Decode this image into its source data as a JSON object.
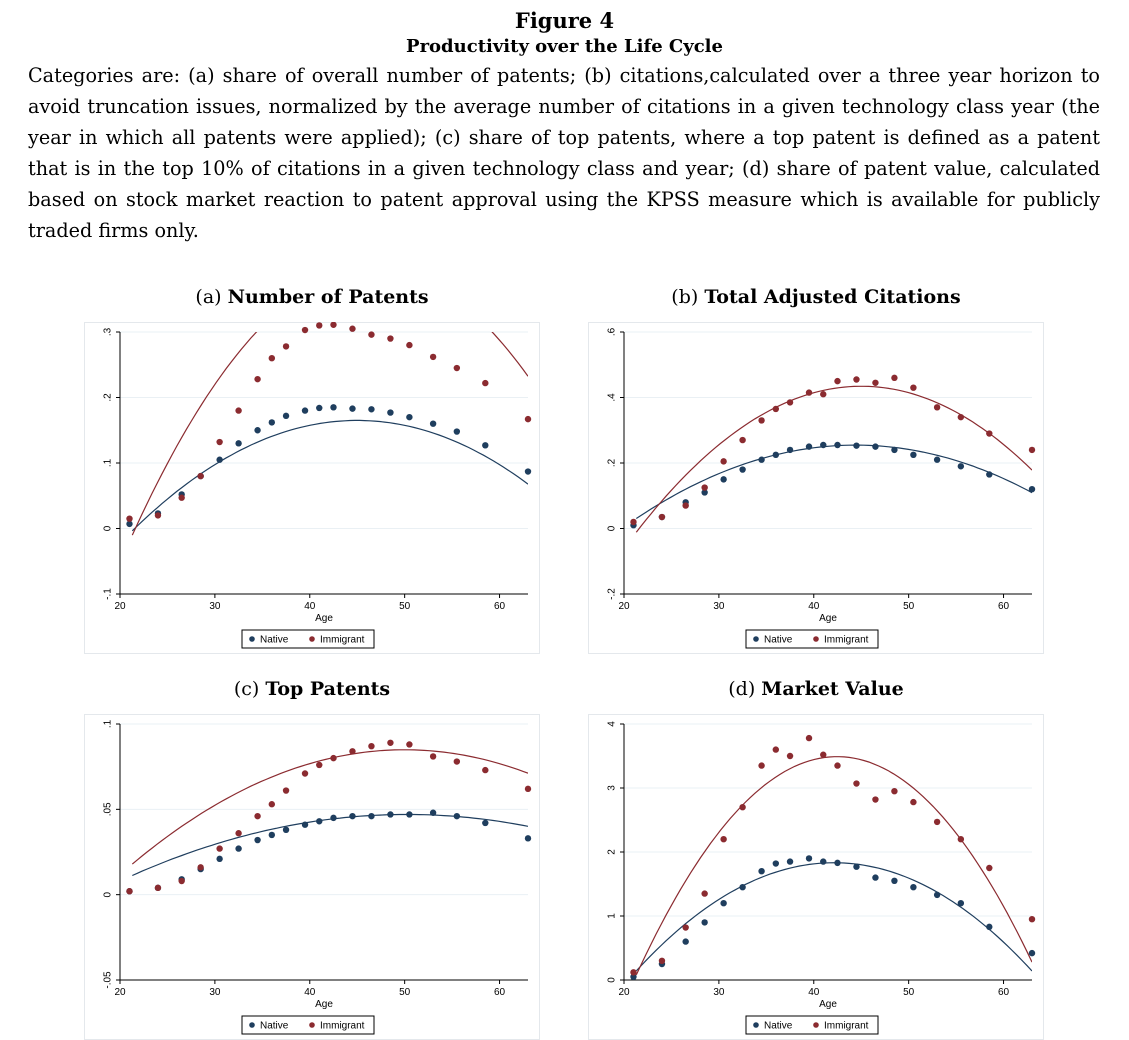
{
  "figure": {
    "label": "Figure 4",
    "title": "Productivity over the Life Cycle",
    "caption": "Categories are: (a) share of overall number of patents; (b) citations,calculated over a three year horizon to avoid truncation issues, normalized by the average number of citations in a given technology class year (the year in which all patents were applied); (c) share of top patents, where a top patent is defined as a patent that is in the top 10% of citations in a given technology class and year; (d) share of patent value, calculated based on stock market reaction to patent approval using the KPSS measure which is available for publicly traded firms only."
  },
  "colors": {
    "native": "#1f3e5e",
    "immigrant": "#8b2b30",
    "grid": "#eaf0f4"
  },
  "panels": [
    {
      "letter": "(a)",
      "name": "Number of Patents"
    },
    {
      "letter": "(b)",
      "name": "Total Adjusted Citations"
    },
    {
      "letter": "(c)",
      "name": "Top Patents"
    },
    {
      "letter": "(d)",
      "name": "Market Value"
    }
  ],
  "chart_data": [
    {
      "type": "scatter",
      "title": "(a) Number of Patents",
      "xlabel": "Age",
      "ylabel": "",
      "xlim": [
        20,
        63
      ],
      "ylim": [
        -0.1,
        0.3
      ],
      "xticks": [
        20,
        30,
        40,
        50,
        60
      ],
      "xtick_labels": [
        "20",
        "30",
        "40",
        "50",
        "60"
      ],
      "yticks": [
        -0.1,
        0,
        0.1,
        0.2,
        0.3
      ],
      "ytick_labels": [
        "-.1",
        "0",
        ".1",
        ".2",
        ".3"
      ],
      "grid": true,
      "legend": "bottom-center",
      "series": [
        {
          "name": "Native",
          "x": [
            21,
            24,
            26.5,
            28.5,
            30.5,
            32.5,
            34.5,
            36,
            37.5,
            39.5,
            41,
            42.5,
            44.5,
            46.5,
            48.5,
            50.5,
            53,
            55.5,
            58.5,
            63
          ],
          "y": [
            0.007,
            0.023,
            0.052,
            0.08,
            0.105,
            0.13,
            0.15,
            0.162,
            0.172,
            0.18,
            0.184,
            0.185,
            0.183,
            0.182,
            0.177,
            0.17,
            0.16,
            0.148,
            0.127,
            0.087
          ],
          "fit": [
            -0.4425,
            0.027,
            -0.0003
          ]
        },
        {
          "name": "Immigrant",
          "x": [
            21,
            24,
            26.5,
            28.5,
            30.5,
            32.5,
            34.5,
            36,
            37.5,
            39.5,
            41,
            42.5,
            44.5,
            46.5,
            48.5,
            50.5,
            53,
            55.5,
            58.5,
            63
          ],
          "y": [
            0.015,
            0.02,
            0.047,
            0.08,
            0.132,
            0.18,
            0.228,
            0.26,
            0.278,
            0.303,
            0.31,
            0.311,
            0.305,
            0.296,
            0.29,
            0.28,
            0.262,
            0.245,
            0.222,
            0.167
          ],
          "fit": [
            -0.9725,
            0.0585,
            -0.000625
          ]
        }
      ]
    },
    {
      "type": "scatter",
      "title": "(b) Total Adjusted Citations",
      "xlabel": "Age",
      "ylabel": "",
      "xlim": [
        20,
        63
      ],
      "ylim": [
        -0.2,
        0.6
      ],
      "xticks": [
        20,
        30,
        40,
        50,
        60
      ],
      "xtick_labels": [
        "20",
        "30",
        "40",
        "50",
        "60"
      ],
      "yticks": [
        -0.2,
        0,
        0.2,
        0.4,
        0.6
      ],
      "ytick_labels": [
        "-.2",
        "0",
        ".2",
        ".4",
        ".6"
      ],
      "grid": true,
      "legend": "bottom-center",
      "series": [
        {
          "name": "Native",
          "x": [
            21,
            24,
            26.5,
            28.5,
            30.5,
            32.5,
            34.5,
            36,
            37.5,
            39.5,
            41,
            42.5,
            44.5,
            46.5,
            48.5,
            50.5,
            53,
            55.5,
            58.5,
            63
          ],
          "y": [
            0.01,
            0.035,
            0.08,
            0.11,
            0.15,
            0.18,
            0.21,
            0.225,
            0.24,
            0.25,
            0.255,
            0.255,
            0.253,
            0.25,
            0.24,
            0.225,
            0.21,
            0.19,
            0.165,
            0.12
          ],
          "fit": [
            -0.5735,
            0.0373,
            -0.00042
          ]
        },
        {
          "name": "Immigrant",
          "x": [
            21,
            24,
            26.5,
            28.5,
            30.5,
            32.5,
            34.5,
            36,
            37.5,
            39.5,
            41,
            42.5,
            44.5,
            46.5,
            48.5,
            50.5,
            53,
            55.5,
            58.5,
            63
          ],
          "y": [
            0.02,
            0.035,
            0.07,
            0.125,
            0.205,
            0.27,
            0.33,
            0.365,
            0.385,
            0.415,
            0.41,
            0.45,
            0.455,
            0.445,
            0.46,
            0.43,
            0.37,
            0.34,
            0.29,
            0.24
          ],
          "fit": [
            -1.1708,
            0.07131,
            -0.000792
          ]
        }
      ]
    },
    {
      "type": "scatter",
      "title": "(c) Top Patents",
      "xlabel": "Age",
      "ylabel": "",
      "xlim": [
        20,
        63
      ],
      "ylim": [
        -0.05,
        0.1
      ],
      "xticks": [
        20,
        30,
        40,
        50,
        60
      ],
      "xtick_labels": [
        "20",
        "30",
        "40",
        "50",
        "60"
      ],
      "yticks": [
        -0.05,
        0,
        0.05,
        0.1
      ],
      "ytick_labels": [
        "-.05",
        "0",
        ".05",
        ".1"
      ],
      "grid": true,
      "legend": "bottom-center",
      "series": [
        {
          "name": "Native",
          "x": [
            21,
            24,
            26.5,
            28.5,
            30.5,
            32.5,
            34.5,
            36,
            37.5,
            39.5,
            41,
            42.5,
            44.5,
            46.5,
            48.5,
            50.5,
            53,
            55.5,
            58.5,
            63
          ],
          "y": [
            0.002,
            0.004,
            0.009,
            0.015,
            0.021,
            0.027,
            0.032,
            0.035,
            0.038,
            0.041,
            0.043,
            0.045,
            0.046,
            0.046,
            0.047,
            0.047,
            0.048,
            0.046,
            0.042,
            0.033
          ],
          "fit": [
            -0.06075,
            0.00429,
            -4.27e-05
          ]
        },
        {
          "name": "Immigrant",
          "x": [
            21,
            24,
            26.5,
            28.5,
            30.5,
            32.5,
            34.5,
            36,
            37.5,
            39.5,
            41,
            42.5,
            44.5,
            46.5,
            48.5,
            50.5,
            53,
            55.5,
            58.5,
            63
          ],
          "y": [
            0.002,
            0.004,
            0.008,
            0.016,
            0.027,
            0.036,
            0.046,
            0.053,
            0.061,
            0.071,
            0.076,
            0.08,
            0.084,
            0.087,
            0.089,
            0.088,
            0.081,
            0.078,
            0.073,
            0.062
          ],
          "fit": [
            -0.11835,
            0.00813,
            -8.13e-05
          ]
        }
      ]
    },
    {
      "type": "scatter",
      "title": "(d) Market Value",
      "xlabel": "Age",
      "ylabel": "",
      "xlim": [
        20,
        63
      ],
      "ylim": [
        0,
        4
      ],
      "xticks": [
        20,
        30,
        40,
        50,
        60
      ],
      "xtick_labels": [
        "20",
        "30",
        "40",
        "50",
        "60"
      ],
      "yticks": [
        0,
        1,
        2,
        3,
        4
      ],
      "ytick_labels": [
        "0",
        "1",
        "2",
        "3",
        "4"
      ],
      "grid": true,
      "legend": "bottom-center",
      "series": [
        {
          "name": "Native",
          "x": [
            21,
            24,
            26.5,
            28.5,
            30.5,
            32.5,
            34.5,
            36,
            37.5,
            39.5,
            41,
            42.5,
            44.5,
            46.5,
            48.5,
            50.5,
            53,
            55.5,
            58.5,
            63
          ],
          "y": [
            0.05,
            0.25,
            0.6,
            0.9,
            1.2,
            1.45,
            1.7,
            1.82,
            1.85,
            1.9,
            1.85,
            1.83,
            1.77,
            1.6,
            1.55,
            1.45,
            1.33,
            1.2,
            0.83,
            0.42
          ],
          "fit": [
            -5.0745,
            0.32778,
            -0.003889
          ]
        },
        {
          "name": "Immigrant",
          "x": [
            21,
            24,
            26.5,
            28.5,
            30.5,
            32.5,
            34.5,
            36,
            37.5,
            39.5,
            41,
            42.5,
            44.5,
            46.5,
            48.5,
            50.5,
            53,
            55.5,
            58.5,
            63
          ],
          "y": [
            0.12,
            0.3,
            0.82,
            1.35,
            2.2,
            2.7,
            3.35,
            3.6,
            3.5,
            3.78,
            3.52,
            3.35,
            3.07,
            2.82,
            2.95,
            2.78,
            2.47,
            2.2,
            1.75,
            0.95
          ],
          "fit": [
            -10.2395,
            0.6466,
            -0.007613
          ]
        }
      ]
    }
  ]
}
